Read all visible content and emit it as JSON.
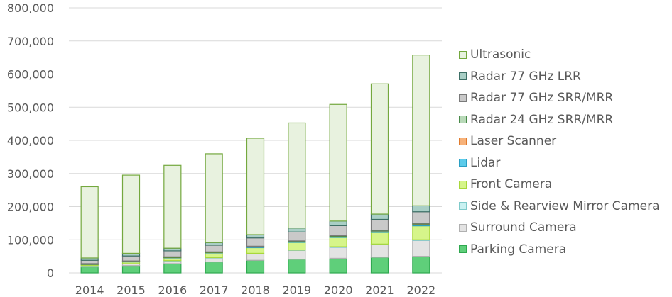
{
  "chart_data": {
    "type": "bar",
    "stacked": true,
    "title": "",
    "xlabel": "",
    "ylabel": "",
    "ylim": [
      0,
      800000
    ],
    "yticks": [
      "0",
      "100,000",
      "200,000",
      "300,000",
      "400,000",
      "500,000",
      "600,000",
      "700,000",
      "800,000"
    ],
    "grid": true,
    "legend_position": "right",
    "categories": [
      "2014",
      "2015",
      "2016",
      "2017",
      "2018",
      "2019",
      "2020",
      "2021",
      "2022"
    ],
    "series": [
      {
        "name": "Parking Camera",
        "color": "#5fcf7a",
        "edge": "#2fa84f",
        "values": [
          18000,
          22000,
          28000,
          33000,
          38000,
          41000,
          44000,
          47000,
          50000
        ]
      },
      {
        "name": "Surround Camera",
        "color": "#e3e3e3",
        "edge": "#b0b0b0",
        "values": [
          3000,
          5000,
          8000,
          12000,
          20000,
          27000,
          33000,
          38000,
          48000
        ]
      },
      {
        "name": "Side & Rearview Mirror Camera",
        "color": "#c9f1f1",
        "edge": "#7fcaca",
        "values": [
          1000,
          1000,
          1000,
          1000,
          1000,
          1000,
          2000,
          2000,
          2000
        ]
      },
      {
        "name": "Front Camera",
        "color": "#d6f58a",
        "edge": "#a8d83b",
        "values": [
          3000,
          5000,
          8000,
          14000,
          17000,
          23000,
          28000,
          35000,
          42000
        ]
      },
      {
        "name": "Lidar",
        "color": "#5ccbea",
        "edge": "#2a9fc4",
        "values": [
          500,
          500,
          1000,
          1000,
          2000,
          2000,
          3000,
          4000,
          5000
        ]
      },
      {
        "name": "Laser Scanner",
        "color": "#f7b27a",
        "edge": "#e07b2e",
        "values": [
          500,
          500,
          500,
          500,
          500,
          500,
          500,
          500,
          500
        ]
      },
      {
        "name": "Radar 24 GHz SRR/MRR",
        "color": "#b8d9b8",
        "edge": "#4a8a4a",
        "values": [
          2000,
          2000,
          2000,
          2000,
          2000,
          2000,
          2000,
          2000,
          2000
        ]
      },
      {
        "name": "Radar 77 GHz SRR/MRR",
        "color": "#c9c9c9",
        "edge": "#7a7a7a",
        "values": [
          10000,
          15000,
          18000,
          20000,
          25000,
          27000,
          30000,
          33000,
          35000
        ]
      },
      {
        "name": "Radar 77 GHz LRR",
        "color": "#a9cfc6",
        "edge": "#3d6f66",
        "values": [
          7000,
          8000,
          8000,
          8000,
          10000,
          12000,
          14000,
          16000,
          18000
        ]
      },
      {
        "name": "Ultrasonic",
        "color": "#e8f2df",
        "edge": "#74a83e",
        "values": [
          215000,
          236000,
          250000,
          268000,
          291000,
          317000,
          352000,
          393000,
          455000
        ]
      }
    ]
  }
}
